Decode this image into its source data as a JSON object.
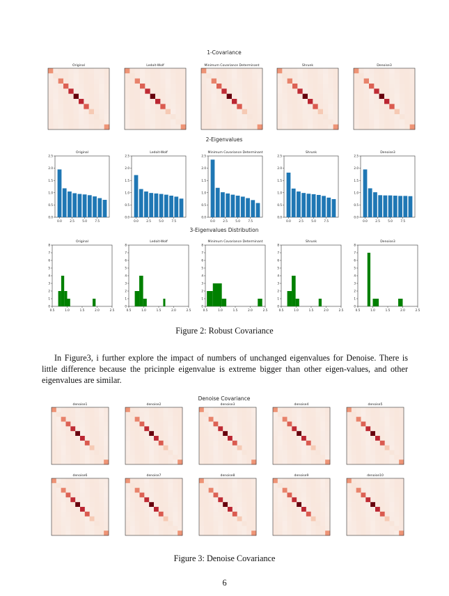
{
  "figure2": {
    "row_titles": [
      "1-Covariance",
      "2-Eigenvalues",
      "3-Eigenvalues Distribution"
    ],
    "panel_titles": [
      "Original",
      "Ledoit-Wolf",
      "Minimum Covariance Determinant",
      "Shrunk",
      "Denoise3"
    ],
    "caption": "Figure 2: Robust Covariance"
  },
  "paragraph": "In Figure3, i further explore the impact of numbers of unchanged eigenvalues for Denoise. There is little difference because the pricinple eigenvalue is extreme bigger than other eigen-values, and other eigenvalues are similar.",
  "figure3": {
    "title": "Denoise Covariance",
    "panel_titles": [
      "denoise1",
      "denoise2",
      "denoise3",
      "denoise4",
      "denoise5",
      "denoise6",
      "denoise7",
      "denoise8",
      "denoise9",
      "denoise10"
    ],
    "caption": "Figure 3: Denoise Covariance"
  },
  "page_number": "6",
  "colors": {
    "bar": "#1f77b4",
    "hist": "#008000",
    "heat_low": "#fbefe9",
    "heat_mid": "#f4a582",
    "heat_high": "#67000d"
  },
  "chart_data": [
    {
      "type": "bar",
      "title": "Original",
      "x": [
        0,
        1,
        2,
        3,
        4,
        5,
        6,
        7,
        8,
        9
      ],
      "values": [
        1.95,
        1.18,
        1.05,
        0.98,
        0.95,
        0.93,
        0.9,
        0.85,
        0.78,
        0.71
      ],
      "ylim": [
        0,
        2.5
      ],
      "xticks": [
        "0.0",
        "2.5",
        "5.0",
        "7.5"
      ],
      "yticks": [
        "0.0",
        "0.5",
        "1.0",
        "1.5",
        "2.0",
        "2.5"
      ]
    },
    {
      "type": "bar",
      "title": "Ledoit-Wolf",
      "x": [
        0,
        1,
        2,
        3,
        4,
        5,
        6,
        7,
        8,
        9
      ],
      "values": [
        1.72,
        1.15,
        1.05,
        0.99,
        0.97,
        0.95,
        0.92,
        0.88,
        0.84,
        0.76
      ],
      "ylim": [
        0,
        2.5
      ],
      "xticks": [
        "0.0",
        "2.5",
        "5.0",
        "7.5"
      ],
      "yticks": [
        "0.0",
        "0.5",
        "1.0",
        "1.5",
        "2.0",
        "2.5"
      ]
    },
    {
      "type": "bar",
      "title": "Minimum Covariance Determinant",
      "x": [
        0,
        1,
        2,
        3,
        4,
        5,
        6,
        7,
        8,
        9
      ],
      "values": [
        2.35,
        1.2,
        1.02,
        0.97,
        0.92,
        0.88,
        0.84,
        0.78,
        0.7,
        0.58
      ],
      "ylim": [
        0,
        2.5
      ],
      "xticks": [
        "0.0",
        "2.5",
        "5.0",
        "7.5"
      ],
      "yticks": [
        "0.0",
        "0.5",
        "1.0",
        "1.5",
        "2.0",
        "2.5"
      ]
    },
    {
      "type": "bar",
      "title": "Shrunk",
      "x": [
        0,
        1,
        2,
        3,
        4,
        5,
        6,
        7,
        8,
        9
      ],
      "values": [
        1.82,
        1.17,
        1.05,
        0.99,
        0.96,
        0.94,
        0.91,
        0.87,
        0.8,
        0.74
      ],
      "ylim": [
        0,
        2.5
      ],
      "xticks": [
        "0.0",
        "2.5",
        "5.0",
        "7.5"
      ],
      "yticks": [
        "0.0",
        "0.5",
        "1.0",
        "1.5",
        "2.0",
        "2.5"
      ]
    },
    {
      "type": "bar",
      "title": "Denoise3",
      "x": [
        0,
        1,
        2,
        3,
        4,
        5,
        6,
        7,
        8,
        9
      ],
      "values": [
        1.95,
        1.18,
        1.02,
        0.9,
        0.89,
        0.89,
        0.88,
        0.87,
        0.87,
        0.86
      ],
      "ylim": [
        0,
        2.5
      ],
      "xticks": [
        "0.0",
        "2.5",
        "5.0",
        "7.5"
      ],
      "yticks": [
        "0.0",
        "0.5",
        "1.0",
        "1.5",
        "2.0",
        "2.5"
      ]
    },
    {
      "type": "histogram",
      "title": "Original",
      "bins": [
        [
          0.7,
          0.8,
          2
        ],
        [
          0.8,
          0.9,
          4
        ],
        [
          0.9,
          1.0,
          2
        ],
        [
          1.0,
          1.1,
          1
        ],
        [
          1.85,
          1.95,
          1
        ]
      ],
      "xlim": [
        0.5,
        2.5
      ],
      "ylim": [
        0,
        8
      ],
      "xticks": [
        "0.5",
        "1.0",
        "1.5",
        "2.0",
        "2.5"
      ],
      "yticks": [
        "0",
        "1",
        "2",
        "3",
        "4",
        "5",
        "6",
        "7",
        "8"
      ]
    },
    {
      "type": "histogram",
      "title": "Ledoit-Wolf",
      "bins": [
        [
          0.7,
          0.85,
          2
        ],
        [
          0.85,
          0.98,
          4
        ],
        [
          0.98,
          1.1,
          1
        ],
        [
          1.65,
          1.72,
          1
        ]
      ],
      "xlim": [
        0.5,
        2.5
      ],
      "ylim": [
        0,
        8
      ],
      "xticks": [
        "0.5",
        "1.0",
        "1.5",
        "2.0",
        "2.5"
      ],
      "yticks": [
        "0",
        "1",
        "2",
        "3",
        "4",
        "5",
        "6",
        "7",
        "8"
      ]
    },
    {
      "type": "histogram",
      "title": "Minimum Covariance Determinant",
      "bins": [
        [
          0.55,
          0.75,
          2
        ],
        [
          0.75,
          1.05,
          3
        ],
        [
          1.05,
          1.2,
          1
        ],
        [
          2.25,
          2.4,
          1
        ]
      ],
      "xlim": [
        0.5,
        2.5
      ],
      "ylim": [
        0,
        8
      ],
      "xticks": [
        "0.5",
        "1.0",
        "1.5",
        "2.0",
        "2.5"
      ],
      "yticks": [
        "0",
        "1",
        "2",
        "3",
        "4",
        "5",
        "6",
        "7",
        "8"
      ]
    },
    {
      "type": "histogram",
      "title": "Shrunk",
      "bins": [
        [
          0.7,
          0.85,
          2
        ],
        [
          0.85,
          0.98,
          4
        ],
        [
          0.98,
          1.1,
          1
        ],
        [
          1.75,
          1.85,
          1
        ]
      ],
      "xlim": [
        0.5,
        2.5
      ],
      "ylim": [
        0,
        8
      ],
      "xticks": [
        "0.5",
        "1.0",
        "1.5",
        "2.0",
        "2.5"
      ],
      "yticks": [
        "0",
        "1",
        "2",
        "3",
        "4",
        "5",
        "6",
        "7",
        "8"
      ]
    },
    {
      "type": "histogram",
      "title": "Denoise3",
      "bins": [
        [
          0.82,
          0.92,
          7
        ],
        [
          1.0,
          1.2,
          1
        ],
        [
          1.85,
          2.0,
          1
        ]
      ],
      "xlim": [
        0.5,
        2.5
      ],
      "ylim": [
        0,
        8
      ],
      "xticks": [
        "0.5",
        "1.0",
        "1.5",
        "2.0",
        "2.5"
      ],
      "yticks": [
        "0",
        "1",
        "2",
        "3",
        "4",
        "5",
        "6",
        "7",
        "8"
      ]
    }
  ]
}
